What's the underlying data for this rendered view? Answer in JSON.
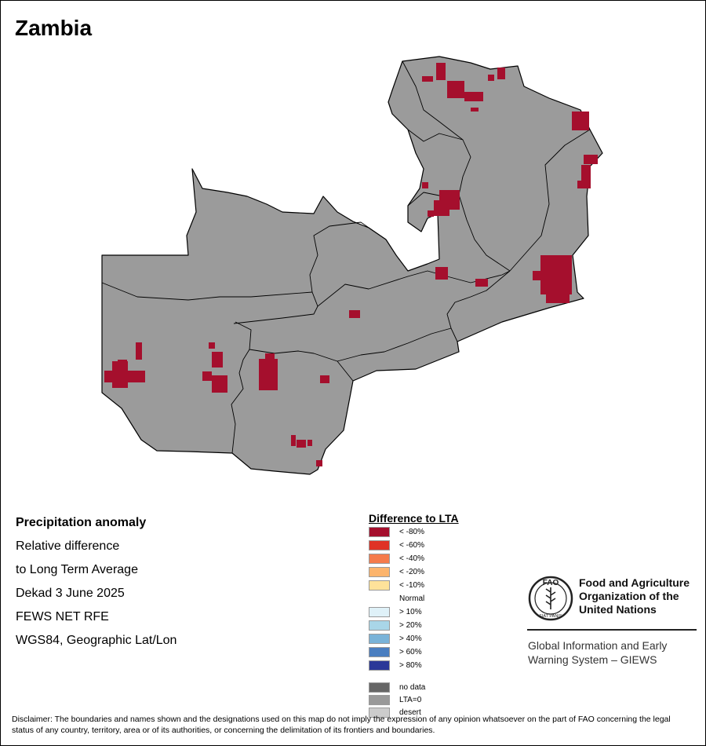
{
  "map": {
    "title": "Zambia",
    "info_lines": [
      "Precipitation anomaly",
      "Relative difference",
      "to Long Term Average",
      "Dekad 3 June 2025",
      "FEWS NET RFE",
      "WGS84, Geographic Lat/Lon"
    ],
    "base_color": "#9b9b9b",
    "anomaly_color": "#a50f2d"
  },
  "legend": {
    "title": "Difference to LTA",
    "items": [
      {
        "label": "< -80%",
        "color": "#a50f2d"
      },
      {
        "label": "< -60%",
        "color": "#df3226"
      },
      {
        "label": "< -40%",
        "color": "#f57b4b"
      },
      {
        "label": "< -20%",
        "color": "#fcb46c"
      },
      {
        "label": "< -10%",
        "color": "#fee29a"
      },
      {
        "label": "Normal",
        "color": "#ffffff"
      },
      {
        "label": "> 10%",
        "color": "#dff1f8"
      },
      {
        "label": "> 20%",
        "color": "#a9d6e8"
      },
      {
        "label": "> 40%",
        "color": "#7ab3d8"
      },
      {
        "label": "> 60%",
        "color": "#4a7ec0"
      },
      {
        "label": "> 80%",
        "color": "#2b3898"
      }
    ],
    "extra_items": [
      {
        "label": "no data",
        "color": "#666666"
      },
      {
        "label": "LTA=0",
        "color": "#999999"
      },
      {
        "label": "desert",
        "color": "#cccccc"
      }
    ]
  },
  "org": {
    "logo_letters": "FAO",
    "logo_motto": "FIAT PANIS",
    "name_lines": [
      "Food and Agriculture",
      "Organization of the",
      "United Nations"
    ],
    "giews_lines": [
      "Global Information and Early",
      "Warning System – GIEWS"
    ]
  },
  "disclaimer": "Disclaimer: The boundaries and names shown and the designations used on this map do not imply the expression of any opinion whatsoever on the part of FAO concerning the legal status of any country, territory, area or of its authorities, or concerning the delimitation of its frontiers and boundaries."
}
